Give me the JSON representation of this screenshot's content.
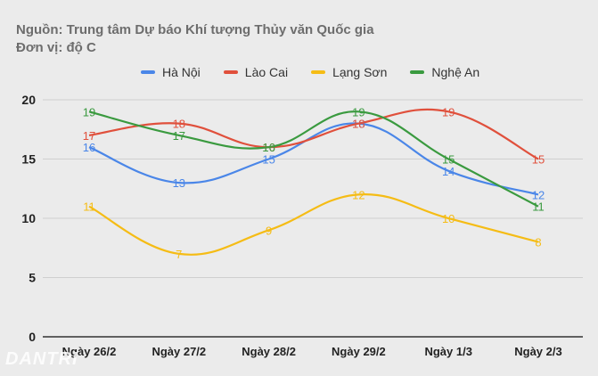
{
  "header": {
    "source": "Nguồn: Trung tâm Dự báo Khí tượng Thủy văn Quốc gia",
    "unit": "Đơn vị: độ C"
  },
  "watermark": "DANTRI",
  "chart_data": {
    "type": "line",
    "title": "",
    "xlabel": "",
    "ylabel": "",
    "categories": [
      "Ngày 26/2",
      "Ngày 27/2",
      "Ngày 28/2",
      "Ngày 29/2",
      "Ngày 1/3",
      "Ngày 2/3"
    ],
    "ylim": [
      0,
      20
    ],
    "yticks": [
      0,
      5,
      10,
      15,
      20
    ],
    "grid": true,
    "legend_position": "top",
    "smooth": true,
    "data_labels": true,
    "series": [
      {
        "name": "Hà Nội",
        "color": "#4a86e8",
        "values": [
          16,
          13,
          15,
          18,
          14,
          12
        ]
      },
      {
        "name": "Lào Cai",
        "color": "#e0503c",
        "values": [
          17,
          18,
          16,
          18,
          19,
          15
        ]
      },
      {
        "name": "Lạng Sơn",
        "color": "#f5bc15",
        "values": [
          11,
          7,
          9,
          12,
          10,
          8
        ]
      },
      {
        "name": "Nghệ An",
        "color": "#3a9a3f",
        "values": [
          19,
          17,
          16,
          19,
          15,
          11
        ]
      }
    ]
  }
}
